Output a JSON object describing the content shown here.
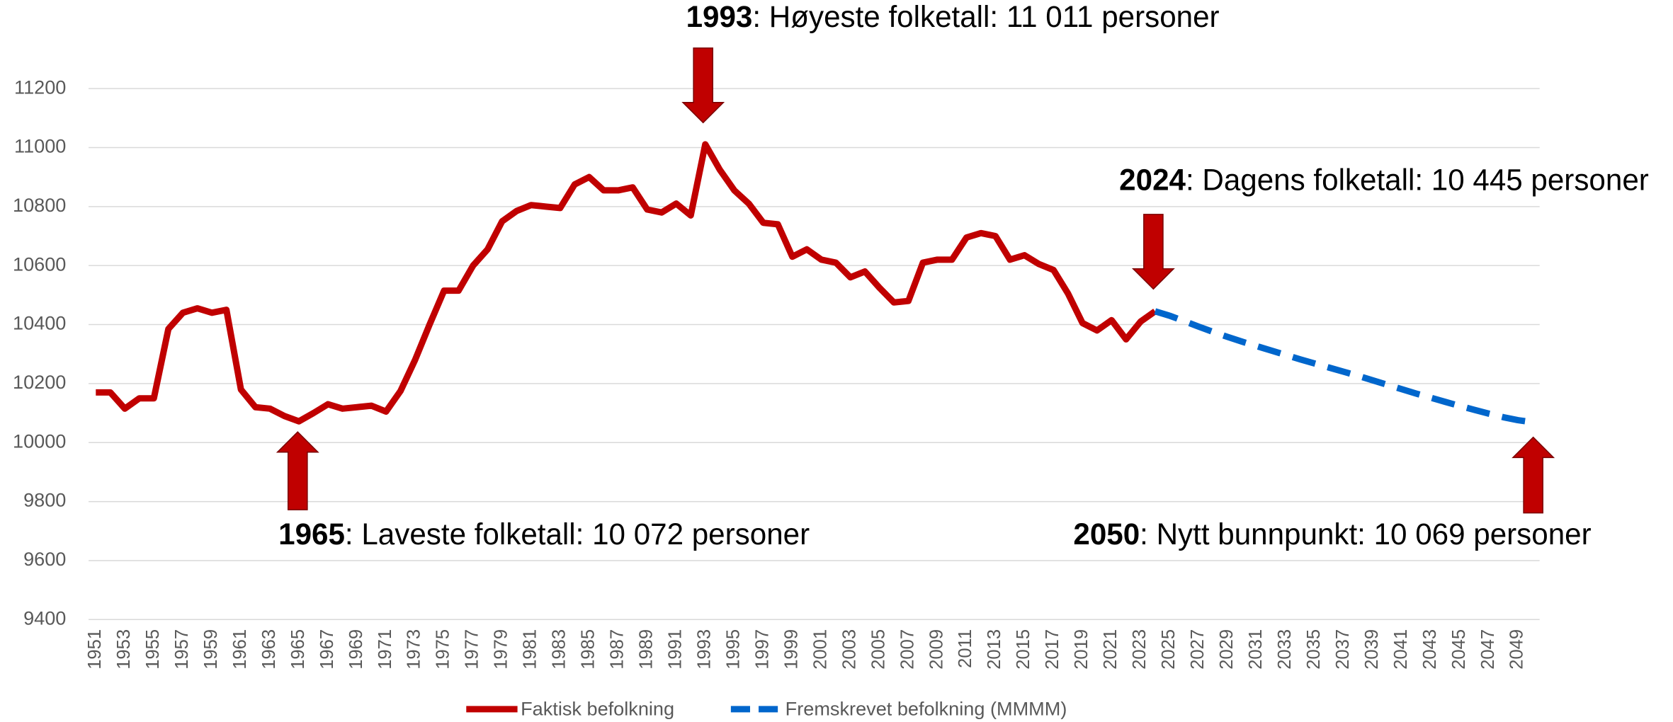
{
  "chart_data": {
    "type": "line",
    "categories": [
      "1951",
      null,
      "1953",
      null,
      "1955",
      null,
      "1957",
      null,
      "1959",
      null,
      "1961",
      null,
      "1963",
      null,
      "1965",
      null,
      "1967",
      null,
      "1969",
      null,
      "1971",
      null,
      "1973",
      null,
      "1975",
      null,
      "1977",
      null,
      "1979",
      null,
      "1981",
      null,
      "1983",
      null,
      "1985",
      null,
      "1987",
      null,
      "1989",
      null,
      "1991",
      null,
      "1993",
      null,
      "1995",
      null,
      "1997",
      null,
      "1999",
      null,
      "2001",
      null,
      "2003",
      null,
      "2005",
      null,
      "2007",
      null,
      "2009",
      null,
      "2011",
      null,
      "2013",
      null,
      "2015",
      null,
      "2017",
      null,
      "2019",
      null,
      "2021",
      null,
      "2023",
      null,
      "2025",
      null,
      "2027",
      null,
      "2029",
      null,
      "2031",
      null,
      "2033",
      null,
      "2035",
      null,
      "2037",
      null,
      "2039",
      null,
      "2041",
      null,
      "2043",
      null,
      "2045",
      null,
      "2047",
      null,
      "2049",
      null
    ],
    "series": [
      {
        "name": "Faktisk befolkning",
        "color": "#c00000",
        "dash": false,
        "values": [
          10170,
          10170,
          10115,
          10150,
          10150,
          10385,
          10440,
          10455,
          10440,
          10450,
          10180,
          10120,
          10115,
          10090,
          10072,
          10100,
          10130,
          10115,
          10120,
          10125,
          10105,
          10175,
          10280,
          10400,
          10515,
          10515,
          10600,
          10655,
          10750,
          10785,
          10805,
          10800,
          10795,
          10875,
          10900,
          10855,
          10855,
          10865,
          10790,
          10780,
          10810,
          10770,
          11011,
          10925,
          10855,
          10810,
          10745,
          10740,
          10630,
          10655,
          10620,
          10610,
          10560,
          10580,
          10525,
          10475,
          10480,
          10610,
          10620,
          10620,
          10695,
          10710,
          10700,
          10620,
          10635,
          10605,
          10585,
          10505,
          10405,
          10380,
          10415,
          10350,
          10410,
          10445,
          null,
          null,
          null,
          null,
          null,
          null,
          null,
          null,
          null,
          null,
          null,
          null,
          null,
          null,
          null,
          null,
          null,
          null,
          null,
          null,
          null,
          null,
          null,
          null,
          null,
          null
        ]
      },
      {
        "name": "Fremskrevet befolkning (MMMM)",
        "color": "#0066cc",
        "dash": true,
        "values": [
          null,
          null,
          null,
          null,
          null,
          null,
          null,
          null,
          null,
          null,
          null,
          null,
          null,
          null,
          null,
          null,
          null,
          null,
          null,
          null,
          null,
          null,
          null,
          null,
          null,
          null,
          null,
          null,
          null,
          null,
          null,
          null,
          null,
          null,
          null,
          null,
          null,
          null,
          null,
          null,
          null,
          null,
          null,
          null,
          null,
          null,
          null,
          null,
          null,
          null,
          null,
          null,
          null,
          null,
          null,
          null,
          null,
          null,
          null,
          null,
          null,
          null,
          null,
          null,
          null,
          null,
          null,
          null,
          null,
          null,
          null,
          null,
          null,
          10445,
          10430,
          10412,
          10393,
          10375,
          10358,
          10342,
          10327,
          10312,
          10297,
          10282,
          10268,
          10254,
          10240,
          10226,
          10211,
          10196,
          10181,
          10166,
          10152,
          10138,
          10124,
          10111,
          10098,
          10086,
          10076,
          10069
        ]
      }
    ],
    "ylim": [
      9400,
      11200
    ],
    "yticks": [
      9400,
      9600,
      9800,
      10000,
      10200,
      10400,
      10600,
      10800,
      11000,
      11200
    ],
    "grid": true,
    "annotations": [
      {
        "bold": "1993",
        "text": ": Høyeste folketall: 11 011 personer"
      },
      {
        "bold": "2024",
        "text": ": Dagens folketall: 10 445 personer"
      },
      {
        "bold": "1965",
        "text": ": Laveste folketall: 10 072 personer"
      },
      {
        "bold": "2050",
        "text": ": Nytt bunnpunkt: 10 069 personer"
      }
    ]
  }
}
